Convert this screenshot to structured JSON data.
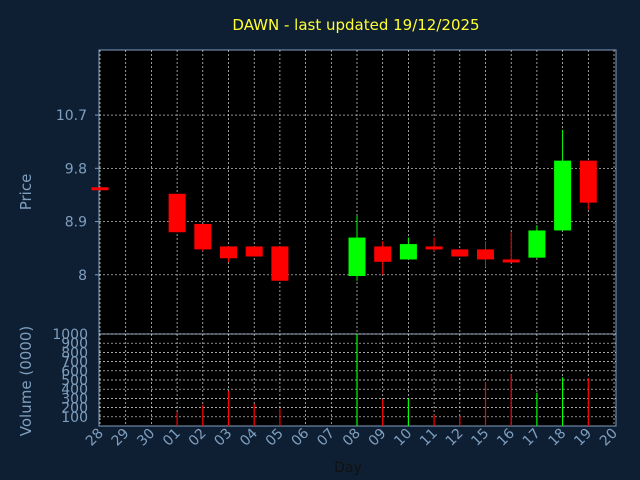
{
  "chart_data": [
    {
      "type": "candlestick",
      "title": "DAWN - last updated 19/12/2025",
      "ylabel": "Price",
      "ylim": [
        7.0,
        11.8
      ],
      "yticks": [
        8,
        8.9,
        9.8,
        10.7
      ],
      "ytick_labels": [
        "8",
        "8.9",
        "9.8",
        "10.7"
      ],
      "grid": true,
      "up_color": "#00ff00",
      "down_color": "#ff0000",
      "candles": [
        {
          "day": "28",
          "open": 9.48,
          "high": 9.48,
          "low": 9.43,
          "close": 9.43
        },
        {
          "day": "01",
          "open": 9.37,
          "high": 9.37,
          "low": 8.72,
          "close": 8.72
        },
        {
          "day": "02",
          "open": 8.86,
          "high": 8.86,
          "low": 8.4,
          "close": 8.43
        },
        {
          "day": "03",
          "open": 8.48,
          "high": 8.48,
          "low": 8.22,
          "close": 8.28
        },
        {
          "day": "04",
          "open": 8.48,
          "high": 8.48,
          "low": 8.31,
          "close": 8.31
        },
        {
          "day": "05",
          "open": 8.48,
          "high": 8.48,
          "low": 7.9,
          "close": 7.9
        },
        {
          "day": "08",
          "open": 7.98,
          "high": 9.0,
          "low": 7.9,
          "close": 8.63
        },
        {
          "day": "09",
          "open": 8.48,
          "high": 8.57,
          "low": 8.0,
          "close": 8.22
        },
        {
          "day": "10",
          "open": 8.26,
          "high": 8.63,
          "low": 8.26,
          "close": 8.52
        },
        {
          "day": "11",
          "open": 8.48,
          "high": 8.63,
          "low": 8.4,
          "close": 8.43
        },
        {
          "day": "12",
          "open": 8.43,
          "high": 8.43,
          "low": 8.31,
          "close": 8.31
        },
        {
          "day": "15",
          "open": 8.43,
          "high": 8.57,
          "low": 8.13,
          "close": 8.26
        },
        {
          "day": "16",
          "open": 8.26,
          "high": 8.72,
          "low": 8.22,
          "close": 8.22
        },
        {
          "day": "17",
          "open": 8.29,
          "high": 8.84,
          "low": 8.29,
          "close": 8.75
        },
        {
          "day": "18",
          "open": 8.75,
          "high": 10.45,
          "low": 8.75,
          "close": 9.93
        },
        {
          "day": "19",
          "open": 9.93,
          "high": 9.93,
          "low": 9.1,
          "close": 9.22
        }
      ]
    },
    {
      "type": "bar",
      "ylabel": "Volume (0000)",
      "xlabel": "Day",
      "ylim": [
        0,
        1000
      ],
      "yticks": [
        100,
        200,
        300,
        400,
        500,
        600,
        700,
        800,
        900,
        1000
      ],
      "ytick_labels": [
        "100",
        "200",
        "300",
        "400",
        "500",
        "600",
        "700",
        "800",
        "900",
        "1000"
      ],
      "x_categories": [
        "28",
        "29",
        "30",
        "01",
        "02",
        "03",
        "04",
        "05",
        "06",
        "07",
        "08",
        "09",
        "10",
        "11",
        "12",
        "15",
        "16",
        "17",
        "18",
        "19",
        "20"
      ],
      "values": [
        {
          "day": "28",
          "volume": 0,
          "color": "#ff0000"
        },
        {
          "day": "01",
          "volume": 150,
          "color": "#ff0000"
        },
        {
          "day": "02",
          "volume": 230,
          "color": "#ff0000"
        },
        {
          "day": "03",
          "volume": 380,
          "color": "#ff0000"
        },
        {
          "day": "04",
          "volume": 240,
          "color": "#ff0000"
        },
        {
          "day": "05",
          "volume": 190,
          "color": "#ff0000"
        },
        {
          "day": "08",
          "volume": 1000,
          "color": "#00ff00"
        },
        {
          "day": "09",
          "volume": 290,
          "color": "#ff0000"
        },
        {
          "day": "10",
          "volume": 300,
          "color": "#00ff00"
        },
        {
          "day": "11",
          "volume": 120,
          "color": "#ff0000"
        },
        {
          "day": "12",
          "volume": 110,
          "color": "#ff0000"
        },
        {
          "day": "15",
          "volume": 480,
          "color": "#ff0000"
        },
        {
          "day": "16",
          "volume": 560,
          "color": "#ff0000"
        },
        {
          "day": "17",
          "volume": 360,
          "color": "#00ff00"
        },
        {
          "day": "18",
          "volume": 530,
          "color": "#00ff00"
        },
        {
          "day": "19",
          "volume": 520,
          "color": "#ff0000"
        }
      ]
    }
  ]
}
